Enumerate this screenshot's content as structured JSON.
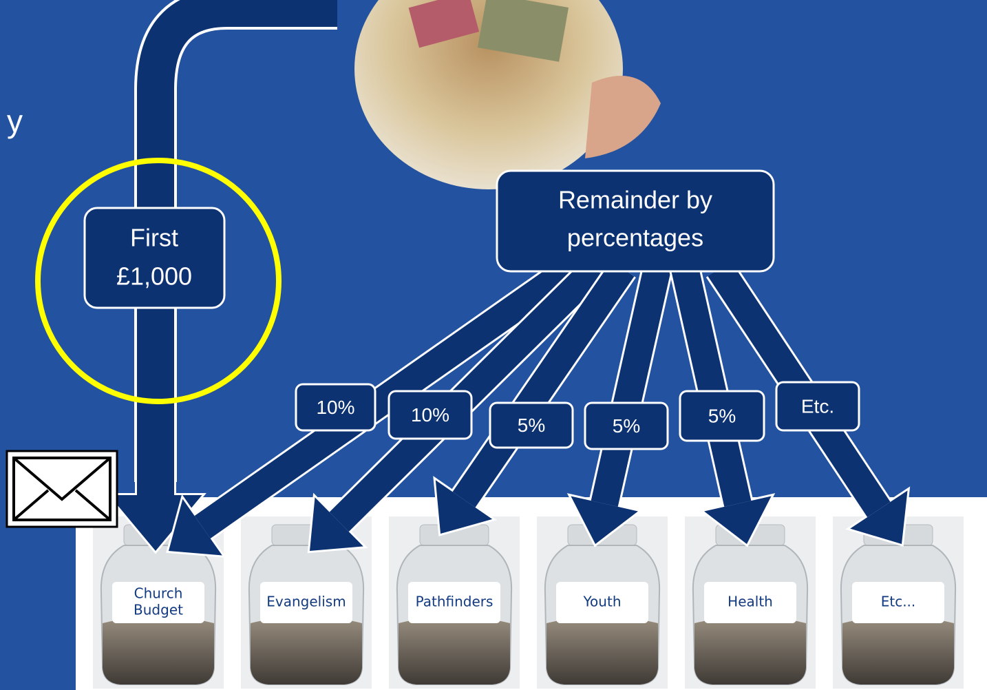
{
  "fragment": "y",
  "first_box": {
    "lines": [
      "First",
      "£1,000"
    ]
  },
  "remainder_box": {
    "lines": [
      "Remainder by",
      "percentages"
    ]
  },
  "splits": [
    {
      "label": "10%"
    },
    {
      "label": "10%"
    },
    {
      "label": "5%"
    },
    {
      "label": "5%"
    },
    {
      "label": "5%"
    },
    {
      "label": "Etc."
    }
  ],
  "jars": [
    {
      "lines": [
        "Church",
        "Budget"
      ]
    },
    {
      "lines": [
        "Evangelism"
      ]
    },
    {
      "lines": [
        "Pathfinders"
      ]
    },
    {
      "lines": [
        "Youth"
      ]
    },
    {
      "lines": [
        "Health"
      ]
    },
    {
      "lines": [
        "Etc..."
      ]
    }
  ]
}
